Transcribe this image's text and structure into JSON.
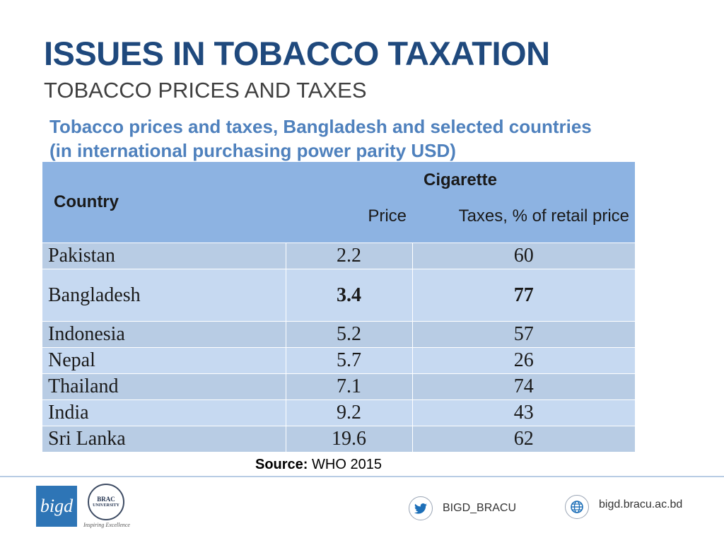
{
  "slide": {
    "title": "ISSUES IN TOBACCO TAXATION",
    "subtitle": "TOBACCO PRICES AND TAXES",
    "caption_line1": "Tobacco prices and taxes, Bangladesh and selected countries",
    "caption_line2": "(in international purchasing power parity USD)"
  },
  "table": {
    "header_country": "Country",
    "header_group": "Cigarette",
    "header_price": "Price",
    "header_tax": "Taxes, % of retail price",
    "rows": [
      {
        "country": "Pakistan",
        "price": "2.2",
        "tax": "60"
      },
      {
        "country": "Bangladesh",
        "price": "3.4",
        "tax": "77"
      },
      {
        "country": "Indonesia",
        "price": "5.2",
        "tax": "57"
      },
      {
        "country": "Nepal",
        "price": "5.7",
        "tax": "26"
      },
      {
        "country": "Thailand",
        "price": "7.1",
        "tax": "74"
      },
      {
        "country": "India",
        "price": "9.2",
        "tax": "43"
      },
      {
        "country": "Sri Lanka",
        "price": "19.6",
        "tax": "62"
      }
    ]
  },
  "source": {
    "label": "Source:",
    "value": "WHO 2015"
  },
  "footer": {
    "logo_bigd_text": "bigd",
    "logo_brac_line1": "BRAC",
    "logo_brac_line2": "UNIVERSITY",
    "logo_brac_tagline": "Inspiring Excellence",
    "twitter_handle": "BIGD_BRACU",
    "website": "bigd.bracu.ac.bd"
  },
  "colors": {
    "title": "#1f497d",
    "caption": "#4f81bd",
    "header_bg": "#8db3e2",
    "row_alt": "#b8cce4",
    "row_norm": "#c6d9f1"
  }
}
